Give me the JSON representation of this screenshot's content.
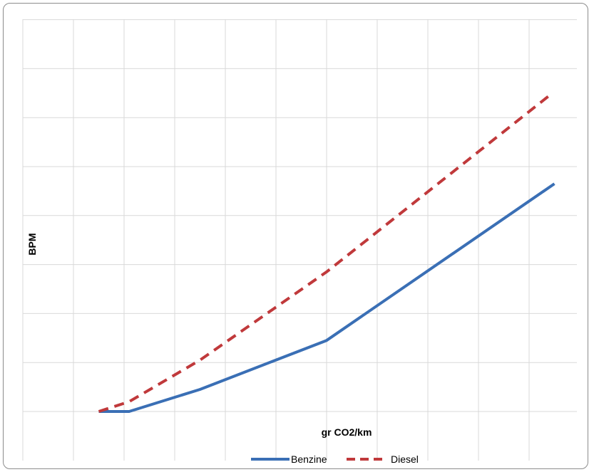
{
  "chart_data": {
    "type": "line",
    "title": "",
    "xlabel": "gr CO2/km",
    "ylabel": "BPM",
    "grid": true,
    "legend_position": "bottom",
    "x_gridlines": 11,
    "y_gridlines": 9,
    "series": [
      {
        "name": "Benzine",
        "color": "#3a6fb5",
        "style": "solid",
        "points": [
          [
            1.5,
            1
          ],
          [
            2.1,
            1
          ],
          [
            3.5,
            1.45
          ],
          [
            6,
            2.45
          ],
          [
            10.5,
            5.65
          ]
        ]
      },
      {
        "name": "Diesel",
        "color": "#c0393b",
        "style": "dashed",
        "points": [
          [
            1.5,
            1
          ],
          [
            2.1,
            1.2
          ],
          [
            3.5,
            2.05
          ],
          [
            6,
            3.85
          ],
          [
            10.4,
            7.45
          ]
        ]
      }
    ]
  }
}
